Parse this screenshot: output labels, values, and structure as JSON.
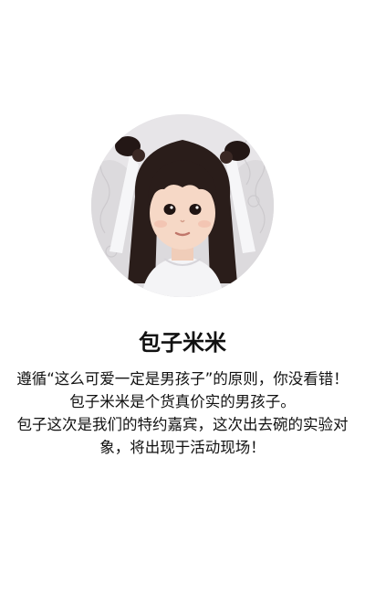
{
  "profile": {
    "name": "包子米米",
    "bio": [
      "遵循“这么可爱一定是男孩子”的原则，你没看错！包子米米是个货真价实的男孩子。",
      "包子这次是我们的特约嘉宾，这次出去碗的实验对象，将出现于活动现场！"
    ],
    "avatar_icon": "child-portrait"
  },
  "colors": {
    "background": "#ffffff",
    "text": "#111111"
  }
}
